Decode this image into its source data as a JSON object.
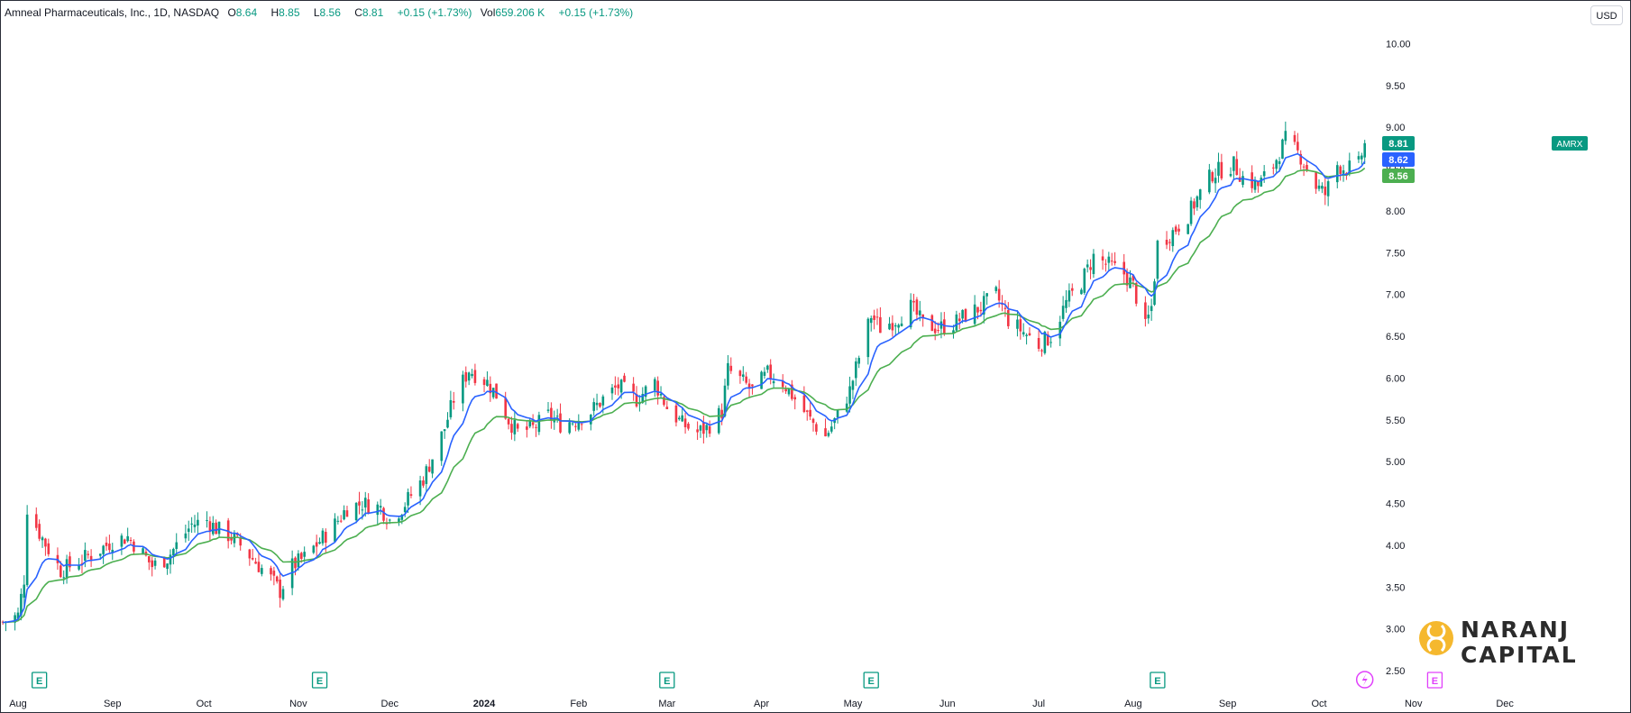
{
  "header": {
    "title": "Amneal Pharmaceuticals, Inc., 1D, NASDAQ",
    "o_label": "O",
    "o_value": "8.64",
    "h_label": "H",
    "h_value": "8.85",
    "l_label": "L",
    "l_value": "8.56",
    "c_label": "C",
    "c_value": "8.81",
    "change": "+0.15 (+1.73%)",
    "vol_label": "Vol",
    "vol_value": "659.206 K",
    "vol_change": "+0.15 (+1.73%)"
  },
  "currency": "USD",
  "logo": {
    "line1": "NARANJ",
    "line2": "CAPITAL"
  },
  "colors": {
    "up": "#089981",
    "down": "#f23645",
    "ema_fast": "#2962ff",
    "ema_slow": "#4caf50",
    "earnings": "#089981",
    "dividend": "#e040fb"
  },
  "chart_data": {
    "type": "candlestick",
    "symbol": "AMRX",
    "ylim": [
      2.5,
      10.25
    ],
    "y_ticks": [
      "10.00",
      "9.50",
      "9.00",
      "8.50",
      "8.00",
      "7.50",
      "7.00",
      "6.50",
      "6.00",
      "5.50",
      "5.00",
      "4.50",
      "4.00",
      "3.50",
      "3.00",
      "2.50"
    ],
    "x_tick_labels": [
      "Aug",
      "Sep",
      "Oct",
      "Nov",
      "Dec",
      "2024",
      "Feb",
      "Mar",
      "Apr",
      "May",
      "Jun",
      "Jul",
      "Aug",
      "Sep",
      "Oct",
      "Nov",
      "Dec"
    ],
    "x_tick_dates": [
      "2023-08-01",
      "2023-09-01",
      "2023-10-01",
      "2023-11-01",
      "2023-12-01",
      "2024-01-01",
      "2024-02-01",
      "2024-03-01",
      "2024-04-01",
      "2024-05-01",
      "2024-06-01",
      "2024-07-01",
      "2024-08-01",
      "2024-09-01",
      "2024-10-01",
      "2024-11-01",
      "2024-12-01"
    ],
    "bold_x_labels": [
      "2024"
    ],
    "closes": [
      [
        "2023-07-27",
        3.08
      ],
      [
        "2023-08-01",
        3.16
      ],
      [
        "2023-08-03",
        3.6
      ],
      [
        "2023-08-04",
        4.45
      ],
      [
        "2023-08-08",
        4.15
      ],
      [
        "2023-08-11",
        3.95
      ],
      [
        "2023-08-15",
        3.7
      ],
      [
        "2023-08-18",
        3.75
      ],
      [
        "2023-08-23",
        3.85
      ],
      [
        "2023-08-28",
        3.95
      ],
      [
        "2023-09-01",
        4.05
      ],
      [
        "2023-09-06",
        4.1
      ],
      [
        "2023-09-11",
        3.9
      ],
      [
        "2023-09-14",
        3.75
      ],
      [
        "2023-09-19",
        3.85
      ],
      [
        "2023-09-22",
        4.0
      ],
      [
        "2023-09-27",
        4.25
      ],
      [
        "2023-10-02",
        4.3
      ],
      [
        "2023-10-05",
        4.2
      ],
      [
        "2023-10-10",
        4.1
      ],
      [
        "2023-10-13",
        4.0
      ],
      [
        "2023-10-18",
        3.8
      ],
      [
        "2023-10-23",
        3.6
      ],
      [
        "2023-10-26",
        3.45
      ],
      [
        "2023-10-30",
        3.75
      ],
      [
        "2023-11-03",
        3.85
      ],
      [
        "2023-11-08",
        4.05
      ],
      [
        "2023-11-13",
        4.25
      ],
      [
        "2023-11-17",
        4.45
      ],
      [
        "2023-11-22",
        4.5
      ],
      [
        "2023-11-28",
        4.45
      ],
      [
        "2023-12-01",
        4.3
      ],
      [
        "2023-12-05",
        4.45
      ],
      [
        "2023-12-08",
        4.6
      ],
      [
        "2023-12-12",
        4.8
      ],
      [
        "2023-12-15",
        5.05
      ],
      [
        "2023-12-19",
        5.4
      ],
      [
        "2023-12-22",
        5.75
      ],
      [
        "2023-12-27",
        6.1
      ],
      [
        "2024-01-02",
        5.95
      ],
      [
        "2024-01-05",
        5.8
      ],
      [
        "2024-01-09",
        5.5
      ],
      [
        "2024-01-12",
        5.35
      ],
      [
        "2024-01-17",
        5.4
      ],
      [
        "2024-01-22",
        5.55
      ],
      [
        "2024-01-26",
        5.45
      ],
      [
        "2024-01-31",
        5.5
      ],
      [
        "2024-02-05",
        5.6
      ],
      [
        "2024-02-09",
        5.75
      ],
      [
        "2024-02-14",
        5.9
      ],
      [
        "2024-02-20",
        5.75
      ],
      [
        "2024-02-26",
        5.95
      ],
      [
        "2024-03-01",
        5.65
      ],
      [
        "2024-03-06",
        5.45
      ],
      [
        "2024-03-11",
        5.35
      ],
      [
        "2024-03-14",
        5.4
      ],
      [
        "2024-03-19",
        5.6
      ],
      [
        "2024-03-21",
        6.1
      ],
      [
        "2024-03-26",
        5.95
      ],
      [
        "2024-03-29",
        5.85
      ],
      [
        "2024-04-03",
        6.05
      ],
      [
        "2024-04-08",
        5.95
      ],
      [
        "2024-04-12",
        5.75
      ],
      [
        "2024-04-17",
        5.5
      ],
      [
        "2024-04-22",
        5.3
      ],
      [
        "2024-04-26",
        5.55
      ],
      [
        "2024-04-30",
        5.85
      ],
      [
        "2024-05-03",
        6.25
      ],
      [
        "2024-05-07",
        6.75
      ],
      [
        "2024-05-10",
        6.6
      ],
      [
        "2024-05-15",
        6.7
      ],
      [
        "2024-05-20",
        6.85
      ],
      [
        "2024-05-24",
        6.65
      ],
      [
        "2024-05-29",
        6.6
      ],
      [
        "2024-06-03",
        6.65
      ],
      [
        "2024-06-07",
        6.75
      ],
      [
        "2024-06-12",
        6.85
      ],
      [
        "2024-06-17",
        7.0
      ],
      [
        "2024-06-21",
        6.7
      ],
      [
        "2024-06-26",
        6.55
      ],
      [
        "2024-07-01",
        6.4
      ],
      [
        "2024-07-05",
        6.5
      ],
      [
        "2024-07-10",
        6.9
      ],
      [
        "2024-07-15",
        7.15
      ],
      [
        "2024-07-19",
        7.45
      ],
      [
        "2024-07-24",
        7.35
      ],
      [
        "2024-07-29",
        7.25
      ],
      [
        "2024-08-01",
        7.1
      ],
      [
        "2024-08-05",
        6.6
      ],
      [
        "2024-08-07",
        6.85
      ],
      [
        "2024-08-09",
        7.6
      ],
      [
        "2024-08-14",
        7.75
      ],
      [
        "2024-08-19",
        7.95
      ],
      [
        "2024-08-22",
        8.15
      ],
      [
        "2024-08-27",
        8.45
      ],
      [
        "2024-09-03",
        8.55
      ],
      [
        "2024-09-06",
        8.4
      ],
      [
        "2024-09-11",
        8.3
      ],
      [
        "2024-09-16",
        8.55
      ],
      [
        "2024-09-20",
        8.85
      ],
      [
        "2024-09-25",
        8.65
      ],
      [
        "2024-09-30",
        8.3
      ],
      [
        "2024-10-03",
        8.2
      ],
      [
        "2024-10-07",
        8.55
      ],
      [
        "2024-10-10",
        8.5
      ],
      [
        "2024-10-14",
        8.55
      ],
      [
        "2024-10-16",
        8.81
      ]
    ],
    "series": [
      {
        "name": "Price",
        "last_value": "8.81",
        "symbol_label": "AMRX"
      },
      {
        "name": "EMA fast",
        "last_value": "8.62"
      },
      {
        "name": "EMA slow",
        "last_value": "8.56"
      }
    ],
    "earnings_markers": [
      {
        "date": "2023-08-08",
        "label": "E"
      },
      {
        "date": "2023-11-08",
        "label": "E"
      },
      {
        "date": "2024-03-01",
        "label": "E"
      },
      {
        "date": "2024-05-07",
        "label": "E"
      },
      {
        "date": "2024-08-09",
        "label": "E"
      },
      {
        "date": "2024-11-08",
        "label": "E"
      }
    ],
    "event_marker": {
      "date": "2024-10-16",
      "icon": "lightning-icon"
    }
  }
}
